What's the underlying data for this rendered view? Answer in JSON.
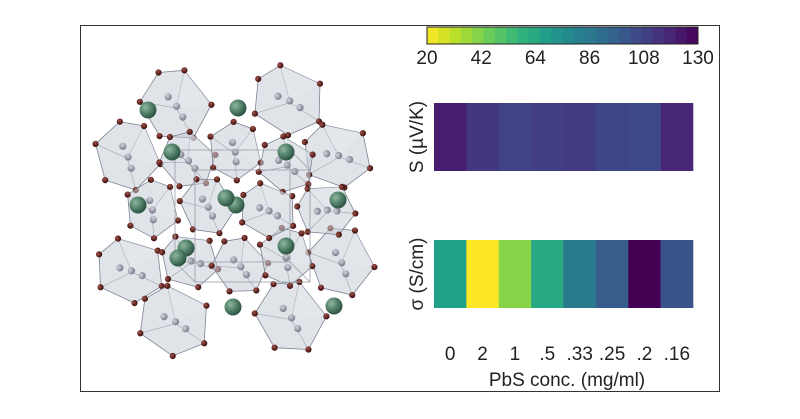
{
  "figure": {
    "left_panel": "Crystal structure illustration (octahedral framework with spherical cations)"
  },
  "chart_data": {
    "type": "heatmap",
    "colormap": "viridis-reversed",
    "colorbar": {
      "min": 20,
      "max": 130,
      "ticks": [
        "20",
        "42",
        "64",
        "86",
        "108",
        "130"
      ],
      "orientation": "horizontal",
      "placement": "top"
    },
    "xlabel": "PbS conc. (mg/ml)",
    "x": [
      "0",
      "2",
      "1",
      ".5",
      ".33",
      ".25",
      ".2",
      ".16"
    ],
    "rows": [
      {
        "name": "S (µV/K)",
        "values": [
          121,
          112,
          108,
          110,
          111,
          107,
          106,
          118
        ]
      },
      {
        "name": "σ (S/cm)",
        "values": [
          68,
          20,
          40,
          64,
          85,
          98,
          130,
          102
        ]
      }
    ]
  }
}
